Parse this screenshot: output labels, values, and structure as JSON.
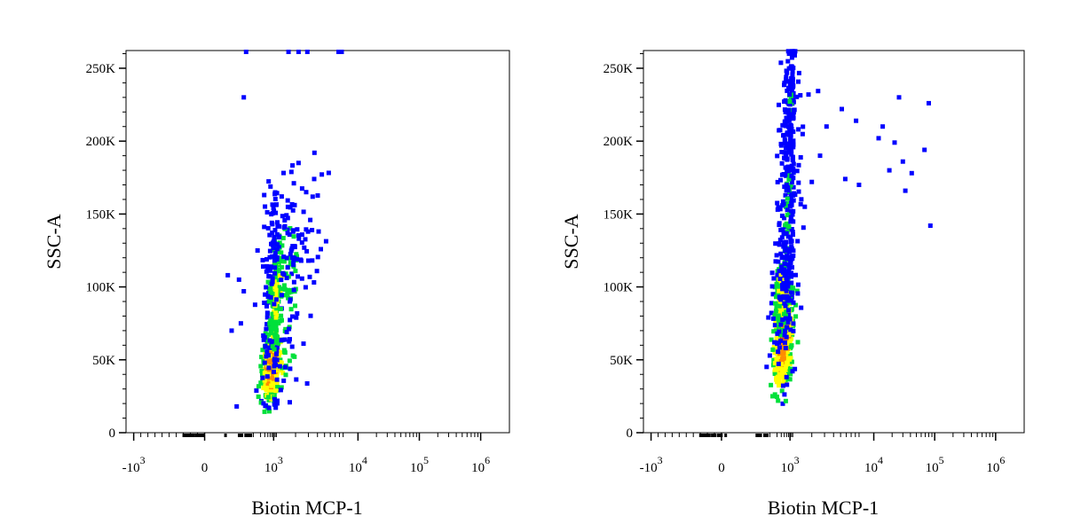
{
  "chart_data": [
    {
      "type": "scatter",
      "xlabel": "Biotin MCP-1",
      "ylabel": "SSC-A",
      "x_scale": "biexponential",
      "y_scale": "linear",
      "ylim": [
        0,
        262144
      ],
      "grid": false,
      "x_ticks": [
        {
          "value": -1000,
          "base": "-10",
          "exp": "3"
        },
        {
          "value": 0,
          "base": "0",
          "exp": ""
        },
        {
          "value": 1000,
          "base": "10",
          "exp": "3"
        },
        {
          "value": 10000,
          "base": "10",
          "exp": "4"
        },
        {
          "value": 100000,
          "base": "10",
          "exp": "5"
        },
        {
          "value": 1000000,
          "base": "10",
          "exp": "6"
        }
      ],
      "y_ticks": [
        {
          "value": 0,
          "label": "0"
        },
        {
          "value": 50000,
          "label": "50K"
        },
        {
          "value": 100000,
          "label": "100K"
        },
        {
          "value": 150000,
          "label": "150K"
        },
        {
          "value": 200000,
          "label": "200K"
        },
        {
          "value": 250000,
          "label": "250K"
        }
      ],
      "density_colors": [
        "#0000ff",
        "#00e03a",
        "#ffff00",
        "#ff8c00",
        "#ff0000"
      ],
      "populations": [
        {
          "x_center": 600,
          "x_spread": 0.22,
          "y_center": 45000,
          "y_spread": 12000,
          "n": 380,
          "density": 3.4
        },
        {
          "x_center": 900,
          "x_spread": 0.25,
          "y_center": 95000,
          "y_spread": 28000,
          "n": 320,
          "density": 2.0
        },
        {
          "x_center": 1200,
          "x_spread": 0.3,
          "y_center": 130000,
          "y_spread": 22000,
          "n": 90,
          "density": 0.6
        }
      ],
      "outliers": [
        {
          "x": 50,
          "y": 262000
        },
        {
          "x": 1600,
          "y": 262000
        },
        {
          "x": 2200,
          "y": 262000
        },
        {
          "x": 2900,
          "y": 262000
        },
        {
          "x": 7800,
          "y": 262000
        },
        {
          "x": 8600,
          "y": 262000
        },
        {
          "x": 40,
          "y": 230000
        },
        {
          "x": 2200,
          "y": 185000
        },
        {
          "x": 3600,
          "y": 174000
        },
        {
          "x": 2800,
          "y": 165000
        },
        {
          "x": 150,
          "y": 125000
        },
        {
          "x": 8,
          "y": 108000
        },
        {
          "x": 25,
          "y": 105000
        },
        {
          "x": 40,
          "y": 97000
        },
        {
          "x": 30,
          "y": 75000
        },
        {
          "x": 12,
          "y": 70000
        },
        {
          "x": 20,
          "y": 18000
        },
        {
          "x": 3000,
          "y": 118000
        }
      ]
    },
    {
      "type": "scatter",
      "xlabel": "Biotin MCP-1",
      "ylabel": "SSC-A",
      "x_scale": "biexponential",
      "y_scale": "linear",
      "ylim": [
        0,
        262144
      ],
      "grid": false,
      "x_ticks": [
        {
          "value": -1000,
          "base": "-10",
          "exp": "3"
        },
        {
          "value": 0,
          "base": "0",
          "exp": ""
        },
        {
          "value": 1000,
          "base": "10",
          "exp": "3"
        },
        {
          "value": 10000,
          "base": "10",
          "exp": "4"
        },
        {
          "value": 100000,
          "base": "10",
          "exp": "5"
        },
        {
          "value": 1000000,
          "base": "10",
          "exp": "6"
        }
      ],
      "y_ticks": [
        {
          "value": 0,
          "label": "0"
        },
        {
          "value": 50000,
          "label": "50K"
        },
        {
          "value": 100000,
          "label": "100K"
        },
        {
          "value": 150000,
          "label": "150K"
        },
        {
          "value": 200000,
          "label": "200K"
        },
        {
          "value": 250000,
          "label": "250K"
        }
      ],
      "density_colors": [
        "#0000ff",
        "#00e03a",
        "#ffff00",
        "#ff8c00",
        "#ff0000"
      ],
      "populations": [
        {
          "x_center": 380,
          "x_spread": 0.2,
          "y_center": 65000,
          "y_spread": 17000,
          "n": 460,
          "density": 3.6
        },
        {
          "x_center": 330,
          "x_spread": 0.2,
          "y_center": 95000,
          "y_spread": 15000,
          "n": 180,
          "density": 2.5
        },
        {
          "x_center": 560,
          "x_spread": 0.2,
          "y_center": 150000,
          "y_spread": 42000,
          "n": 260,
          "density": 1.0
        },
        {
          "x_center": 700,
          "x_spread": 0.15,
          "y_center": 225000,
          "y_spread": 18000,
          "n": 110,
          "density": 0.8
        }
      ],
      "outliers": [
        {
          "x": 1800,
          "y": 232000
        },
        {
          "x": 5200,
          "y": 222000
        },
        {
          "x": 8200,
          "y": 214000
        },
        {
          "x": 3200,
          "y": 210000
        },
        {
          "x": 12000,
          "y": 202000
        },
        {
          "x": 22000,
          "y": 199000
        },
        {
          "x": 30000,
          "y": 186000
        },
        {
          "x": 26000,
          "y": 230000
        },
        {
          "x": 68000,
          "y": 194000
        },
        {
          "x": 80000,
          "y": 226000
        },
        {
          "x": 42000,
          "y": 178000
        },
        {
          "x": 33000,
          "y": 166000
        },
        {
          "x": 5800,
          "y": 174000
        },
        {
          "x": 2600,
          "y": 190000
        },
        {
          "x": 14000,
          "y": 210000
        },
        {
          "x": 85000,
          "y": 142000
        },
        {
          "x": 1600,
          "y": 155000
        },
        {
          "x": 18000,
          "y": 180000
        },
        {
          "x": 2000,
          "y": 172000
        },
        {
          "x": 9000,
          "y": 170000
        }
      ]
    }
  ]
}
